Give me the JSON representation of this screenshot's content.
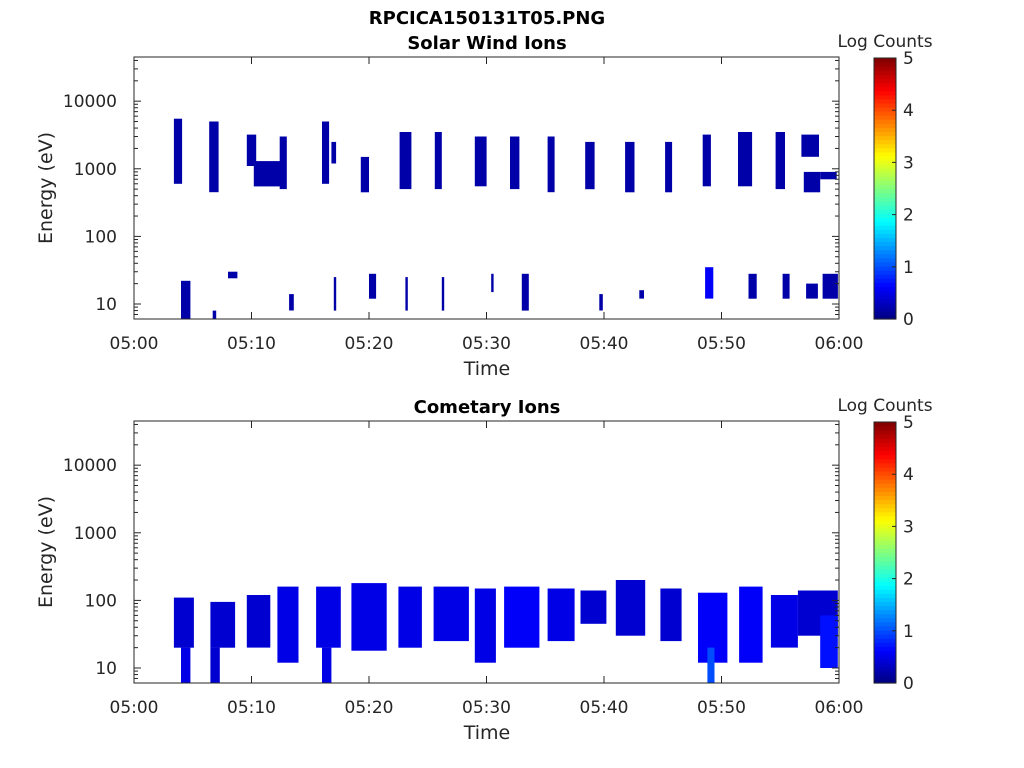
{
  "figure_title": "RPCICA150131T05.PNG",
  "chart_data": [
    {
      "type": "heatmap",
      "title": "Solar Wind Ions",
      "xlabel": "Time",
      "ylabel": "Energy (eV)",
      "x_ticks": [
        "05:00",
        "05:10",
        "05:20",
        "05:30",
        "05:40",
        "05:50",
        "06:00"
      ],
      "xlim": [
        "05:00",
        "06:00"
      ],
      "y_scale": "log",
      "ylim": [
        6,
        45000
      ],
      "y_ticks": [
        10,
        100,
        1000,
        10000
      ],
      "y_tick_labels": [
        "10",
        "100",
        "1000",
        "10000"
      ],
      "colorbar": {
        "label": "Log Counts",
        "range": [
          0,
          5
        ],
        "ticks": [
          "0",
          "1",
          "2",
          "3",
          "4",
          "5"
        ],
        "colormap": "jet"
      },
      "grid": false,
      "blocks": [
        {
          "t0": 3.4,
          "t1": 4.1,
          "e0": 600,
          "e1": 5500,
          "v": 0.2
        },
        {
          "t0": 6.4,
          "t1": 7.2,
          "e0": 450,
          "e1": 5000,
          "v": 0.2
        },
        {
          "t0": 9.6,
          "t1": 10.4,
          "e0": 1100,
          "e1": 3200,
          "v": 0.2
        },
        {
          "t0": 10.2,
          "t1": 12.5,
          "e0": 550,
          "e1": 1300,
          "v": 0.2
        },
        {
          "t0": 12.4,
          "t1": 13.0,
          "e0": 500,
          "e1": 3000,
          "v": 0.2
        },
        {
          "t0": 16.0,
          "t1": 16.6,
          "e0": 600,
          "e1": 5000,
          "v": 0.2
        },
        {
          "t0": 16.8,
          "t1": 17.2,
          "e0": 1200,
          "e1": 2500,
          "v": 0.2
        },
        {
          "t0": 19.3,
          "t1": 20.0,
          "e0": 450,
          "e1": 1500,
          "v": 0.2
        },
        {
          "t0": 22.6,
          "t1": 23.6,
          "e0": 500,
          "e1": 3500,
          "v": 0.2
        },
        {
          "t0": 25.6,
          "t1": 26.2,
          "e0": 500,
          "e1": 3500,
          "v": 0.2
        },
        {
          "t0": 29.0,
          "t1": 30.0,
          "e0": 550,
          "e1": 3000,
          "v": 0.2
        },
        {
          "t0": 32.0,
          "t1": 32.8,
          "e0": 500,
          "e1": 3000,
          "v": 0.2
        },
        {
          "t0": 35.2,
          "t1": 35.8,
          "e0": 450,
          "e1": 3000,
          "v": 0.2
        },
        {
          "t0": 38.4,
          "t1": 39.2,
          "e0": 500,
          "e1": 2500,
          "v": 0.2
        },
        {
          "t0": 41.8,
          "t1": 42.6,
          "e0": 450,
          "e1": 2500,
          "v": 0.2
        },
        {
          "t0": 45.2,
          "t1": 45.8,
          "e0": 450,
          "e1": 2500,
          "v": 0.2
        },
        {
          "t0": 48.4,
          "t1": 49.1,
          "e0": 550,
          "e1": 3200,
          "v": 0.2
        },
        {
          "t0": 51.4,
          "t1": 52.6,
          "e0": 550,
          "e1": 3500,
          "v": 0.2
        },
        {
          "t0": 54.6,
          "t1": 55.4,
          "e0": 500,
          "e1": 3500,
          "v": 0.2
        },
        {
          "t0": 56.8,
          "t1": 58.3,
          "e0": 1500,
          "e1": 3200,
          "v": 0.2
        },
        {
          "t0": 57.0,
          "t1": 58.4,
          "e0": 450,
          "e1": 900,
          "v": 0.2
        },
        {
          "t0": 58.4,
          "t1": 59.8,
          "e0": 700,
          "e1": 900,
          "v": 0.2
        },
        {
          "t0": 4.0,
          "t1": 4.8,
          "e0": 6,
          "e1": 22,
          "v": 0.2
        },
        {
          "t0": 6.7,
          "t1": 7.0,
          "e0": 6,
          "e1": 8,
          "v": 0.2
        },
        {
          "t0": 8.0,
          "t1": 8.8,
          "e0": 24,
          "e1": 30,
          "v": 0.2
        },
        {
          "t0": 13.2,
          "t1": 13.6,
          "e0": 8,
          "e1": 14,
          "v": 0.2
        },
        {
          "t0": 17.0,
          "t1": 17.2,
          "e0": 8,
          "e1": 25,
          "v": 0.2
        },
        {
          "t0": 20.0,
          "t1": 20.6,
          "e0": 12,
          "e1": 28,
          "v": 0.2
        },
        {
          "t0": 23.1,
          "t1": 23.3,
          "e0": 8,
          "e1": 25,
          "v": 0.2
        },
        {
          "t0": 26.2,
          "t1": 26.4,
          "e0": 8,
          "e1": 25,
          "v": 0.2
        },
        {
          "t0": 30.4,
          "t1": 30.6,
          "e0": 15,
          "e1": 28,
          "v": 0.2
        },
        {
          "t0": 33.0,
          "t1": 33.6,
          "e0": 8,
          "e1": 28,
          "v": 0.2
        },
        {
          "t0": 39.6,
          "t1": 39.9,
          "e0": 8,
          "e1": 14,
          "v": 0.2
        },
        {
          "t0": 43.0,
          "t1": 43.4,
          "e0": 12,
          "e1": 16,
          "v": 0.2
        },
        {
          "t0": 48.6,
          "t1": 49.3,
          "e0": 12,
          "e1": 35,
          "v": 0.6
        },
        {
          "t0": 52.3,
          "t1": 53.0,
          "e0": 12,
          "e1": 28,
          "v": 0.2
        },
        {
          "t0": 55.2,
          "t1": 55.8,
          "e0": 12,
          "e1": 28,
          "v": 0.2
        },
        {
          "t0": 57.2,
          "t1": 58.2,
          "e0": 12,
          "e1": 20,
          "v": 0.2
        },
        {
          "t0": 58.6,
          "t1": 59.9,
          "e0": 12,
          "e1": 28,
          "v": 0.2
        }
      ]
    },
    {
      "type": "heatmap",
      "title": "Cometary Ions",
      "xlabel": "Time",
      "ylabel": "Energy (eV)",
      "x_ticks": [
        "05:00",
        "05:10",
        "05:20",
        "05:30",
        "05:40",
        "05:50",
        "06:00"
      ],
      "xlim": [
        "05:00",
        "06:00"
      ],
      "y_scale": "log",
      "ylim": [
        6,
        45000
      ],
      "y_ticks": [
        10,
        100,
        1000,
        10000
      ],
      "y_tick_labels": [
        "10",
        "100",
        "1000",
        "10000"
      ],
      "colorbar": {
        "label": "Log Counts",
        "range": [
          0,
          5
        ],
        "ticks": [
          "0",
          "1",
          "2",
          "3",
          "4",
          "5"
        ],
        "colormap": "jet"
      },
      "grid": false,
      "blocks": [
        {
          "t0": 3.4,
          "t1": 5.1,
          "e0": 20,
          "e1": 110,
          "v": 0.4
        },
        {
          "t0": 4.0,
          "t1": 4.8,
          "e0": 6,
          "e1": 20,
          "v": 0.5
        },
        {
          "t0": 6.5,
          "t1": 8.6,
          "e0": 20,
          "e1": 95,
          "v": 0.4
        },
        {
          "t0": 6.5,
          "t1": 7.3,
          "e0": 6,
          "e1": 20,
          "v": 0.4
        },
        {
          "t0": 9.6,
          "t1": 11.6,
          "e0": 20,
          "e1": 120,
          "v": 0.4
        },
        {
          "t0": 12.2,
          "t1": 14.0,
          "e0": 12,
          "e1": 160,
          "v": 0.5
        },
        {
          "t0": 15.5,
          "t1": 17.6,
          "e0": 20,
          "e1": 160,
          "v": 0.5
        },
        {
          "t0": 16.0,
          "t1": 16.8,
          "e0": 6,
          "e1": 20,
          "v": 0.5
        },
        {
          "t0": 18.5,
          "t1": 21.5,
          "e0": 18,
          "e1": 180,
          "v": 0.5
        },
        {
          "t0": 22.5,
          "t1": 24.5,
          "e0": 20,
          "e1": 160,
          "v": 0.5
        },
        {
          "t0": 25.5,
          "t1": 28.5,
          "e0": 25,
          "e1": 160,
          "v": 0.5
        },
        {
          "t0": 29.0,
          "t1": 30.8,
          "e0": 12,
          "e1": 150,
          "v": 0.5
        },
        {
          "t0": 31.5,
          "t1": 34.5,
          "e0": 20,
          "e1": 160,
          "v": 0.6
        },
        {
          "t0": 35.2,
          "t1": 37.5,
          "e0": 25,
          "e1": 150,
          "v": 0.5
        },
        {
          "t0": 38.0,
          "t1": 40.2,
          "e0": 45,
          "e1": 140,
          "v": 0.4
        },
        {
          "t0": 41.0,
          "t1": 43.5,
          "e0": 30,
          "e1": 200,
          "v": 0.4
        },
        {
          "t0": 44.8,
          "t1": 46.6,
          "e0": 25,
          "e1": 150,
          "v": 0.4
        },
        {
          "t0": 48.0,
          "t1": 50.5,
          "e0": 12,
          "e1": 130,
          "v": 0.6
        },
        {
          "t0": 48.8,
          "t1": 49.4,
          "e0": 6,
          "e1": 20,
          "v": 1.0
        },
        {
          "t0": 51.5,
          "t1": 53.5,
          "e0": 12,
          "e1": 160,
          "v": 0.6
        },
        {
          "t0": 54.2,
          "t1": 56.5,
          "e0": 20,
          "e1": 120,
          "v": 0.5
        },
        {
          "t0": 56.5,
          "t1": 59.9,
          "e0": 30,
          "e1": 140,
          "v": 0.4
        },
        {
          "t0": 58.4,
          "t1": 59.9,
          "e0": 10,
          "e1": 60,
          "v": 0.7
        }
      ]
    }
  ]
}
